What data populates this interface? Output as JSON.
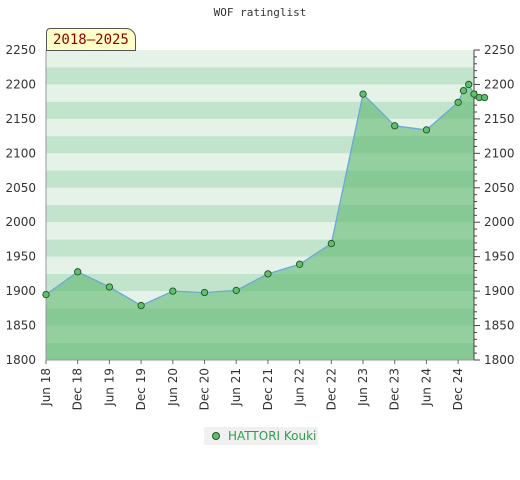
{
  "chart_data": {
    "type": "area",
    "title": "WOF ratinglist",
    "range_label": "2018–2025",
    "ylim": [
      1800,
      2250
    ],
    "yticks": [
      1800,
      1850,
      1900,
      1950,
      2000,
      2050,
      2100,
      2150,
      2200,
      2250
    ],
    "xticks": [
      "Jun 18",
      "Dec 18",
      "Jun 19",
      "Dec 19",
      "Jun 20",
      "Dec 20",
      "Jun 21",
      "Dec 21",
      "Jun 22",
      "Dec 22",
      "Jun 23",
      "Dec 23",
      "Jun 24",
      "Dec 24"
    ],
    "xlim": [
      "2018-06",
      "2025-03"
    ],
    "grid": true,
    "legend_position": "bottom-center",
    "series": [
      {
        "name": "HATTORI Kouki",
        "points": [
          {
            "x": "2018-06",
            "y": 1895
          },
          {
            "x": "2018-12",
            "y": 1928
          },
          {
            "x": "2019-06",
            "y": 1906
          },
          {
            "x": "2019-12",
            "y": 1879
          },
          {
            "x": "2020-06",
            "y": 1900
          },
          {
            "x": "2020-12",
            "y": 1898
          },
          {
            "x": "2021-06",
            "y": 1901
          },
          {
            "x": "2021-12",
            "y": 1925
          },
          {
            "x": "2022-06",
            "y": 1939
          },
          {
            "x": "2022-12",
            "y": 1969
          },
          {
            "x": "2023-06",
            "y": 2186
          },
          {
            "x": "2023-12",
            "y": 2140
          },
          {
            "x": "2024-06",
            "y": 2134
          },
          {
            "x": "2024-12",
            "y": 2174
          },
          {
            "x": "2025-01",
            "y": 2191
          },
          {
            "x": "2025-02",
            "y": 2200
          },
          {
            "x": "2025-03",
            "y": 2186
          },
          {
            "x": "2025-04",
            "y": 2181
          },
          {
            "x": "2025-05",
            "y": 2181
          }
        ]
      }
    ],
    "colors": {
      "fill": "#5fb76f",
      "line": "#6aa8d8",
      "marker": "#5fbf6f",
      "marker_edge": "#225522",
      "band_light": "#e4f2e8",
      "band_dark": "#c2e4cc"
    }
  }
}
